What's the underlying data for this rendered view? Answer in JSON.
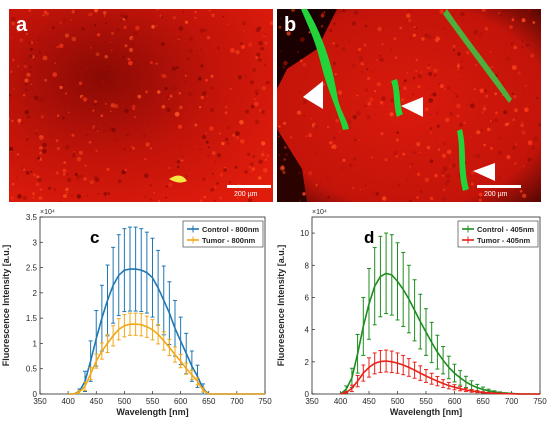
{
  "figure": {
    "panels": {
      "a": {
        "letter": "a",
        "scale_text": "200 µm",
        "stain_colors": [
          "#e41a0a",
          "#f5e642"
        ]
      },
      "b": {
        "letter": "b",
        "scale_text": "200 µm",
        "stain_colors": [
          "#e41a0a",
          "#22d43a"
        ],
        "markers": [
          "arrowhead-icon",
          "arrowhead-icon",
          "arrowhead-icon"
        ]
      },
      "c": {
        "letter": "c"
      },
      "d": {
        "letter": "d"
      }
    }
  },
  "chart_data": [
    {
      "type": "line",
      "panel": "c",
      "xlabel": "Wavelength [nm]",
      "ylabel": "Fluorescence Intensity [a.u.]",
      "exponent_label": "×10⁴",
      "xlim": [
        350,
        750
      ],
      "ylim": [
        0,
        3.5
      ],
      "xticks": [
        350,
        400,
        450,
        500,
        550,
        600,
        650,
        700,
        750
      ],
      "yticks": [
        0,
        0.5,
        1,
        1.5,
        2,
        2.5,
        3,
        3.5
      ],
      "ytick_labels": [
        "0",
        "0.5",
        "1",
        "1.5",
        "2",
        "2.5",
        "3",
        "3.5"
      ],
      "legend_position": "top-right",
      "series": [
        {
          "name": "Control - 800nm",
          "color": "#1f77b4",
          "x": [
            400,
            410,
            420,
            430,
            440,
            450,
            460,
            470,
            480,
            490,
            500,
            510,
            520,
            530,
            540,
            550,
            560,
            570,
            580,
            590,
            600,
            610,
            620,
            630,
            640,
            650,
            660,
            670,
            680,
            690,
            700,
            710,
            720,
            730,
            740,
            750
          ],
          "y": [
            0,
            0,
            0.05,
            0.25,
            0.65,
            1.1,
            1.5,
            1.85,
            2.15,
            2.35,
            2.45,
            2.47,
            2.47,
            2.45,
            2.4,
            2.3,
            2.1,
            1.85,
            1.6,
            1.3,
            1.05,
            0.8,
            0.55,
            0.35,
            0.1,
            0,
            0,
            0,
            0,
            0,
            0,
            0,
            0,
            0,
            0,
            0
          ],
          "err": [
            0,
            0,
            0.05,
            0.2,
            0.4,
            0.55,
            0.65,
            0.7,
            0.75,
            0.8,
            0.82,
            0.83,
            0.83,
            0.82,
            0.8,
            0.78,
            0.74,
            0.68,
            0.62,
            0.55,
            0.47,
            0.4,
            0.3,
            0.22,
            0.1,
            0,
            0,
            0,
            0,
            0,
            0,
            0,
            0,
            0,
            0,
            0
          ]
        },
        {
          "name": "Tumor - 800nm",
          "color": "#f0a818",
          "x": [
            400,
            410,
            420,
            430,
            440,
            450,
            460,
            470,
            480,
            490,
            500,
            510,
            520,
            530,
            540,
            550,
            560,
            570,
            580,
            590,
            600,
            610,
            620,
            630,
            640,
            650,
            660,
            670,
            680,
            690,
            700,
            710,
            720,
            730,
            740,
            750
          ],
          "y": [
            0,
            0,
            0.04,
            0.15,
            0.4,
            0.65,
            0.85,
            1.0,
            1.15,
            1.28,
            1.35,
            1.38,
            1.38,
            1.37,
            1.33,
            1.27,
            1.18,
            1.05,
            0.92,
            0.78,
            0.65,
            0.5,
            0.38,
            0.25,
            0.08,
            0,
            0,
            0,
            0,
            0,
            0,
            0,
            0,
            0,
            0,
            0
          ],
          "err": [
            0,
            0,
            0.03,
            0.08,
            0.12,
            0.14,
            0.16,
            0.18,
            0.2,
            0.21,
            0.22,
            0.22,
            0.22,
            0.22,
            0.21,
            0.2,
            0.19,
            0.18,
            0.16,
            0.15,
            0.13,
            0.11,
            0.09,
            0.07,
            0.04,
            0,
            0,
            0,
            0,
            0,
            0,
            0,
            0,
            0,
            0,
            0
          ]
        }
      ]
    },
    {
      "type": "line",
      "panel": "d",
      "xlabel": "Wavelength [nm]",
      "ylabel": "Fluorescence Intensity [a.u.]",
      "exponent_label": "×10⁴",
      "xlim": [
        350,
        750
      ],
      "ylim": [
        0,
        11
      ],
      "xticks": [
        350,
        400,
        450,
        500,
        550,
        600,
        650,
        700,
        750
      ],
      "yticks": [
        0,
        2,
        4,
        6,
        8,
        10
      ],
      "ytick_labels": [
        "0",
        "2",
        "4",
        "6",
        "8",
        "10"
      ],
      "legend_position": "top-left",
      "series": [
        {
          "name": "Control - 405nm",
          "color": "#1e8c1e",
          "x": [
            400,
            410,
            420,
            430,
            440,
            450,
            460,
            470,
            480,
            490,
            500,
            510,
            520,
            530,
            540,
            550,
            560,
            570,
            580,
            590,
            600,
            610,
            620,
            630,
            640,
            650,
            660,
            670,
            680,
            690,
            700,
            710,
            720,
            730,
            740,
            750
          ],
          "y": [
            0,
            0.3,
            1.0,
            2.5,
            4.2,
            5.6,
            6.7,
            7.3,
            7.5,
            7.4,
            7.0,
            6.5,
            5.9,
            5.2,
            4.5,
            3.85,
            3.2,
            2.6,
            2.1,
            1.65,
            1.3,
            1.0,
            0.75,
            0.55,
            0.4,
            0.28,
            0.2,
            0.13,
            0.08,
            0.05,
            0.03,
            0.01,
            0,
            0,
            0,
            0
          ],
          "err": [
            0,
            0.2,
            0.6,
            1.2,
            1.8,
            2.2,
            2.4,
            2.5,
            2.5,
            2.5,
            2.4,
            2.3,
            2.1,
            1.9,
            1.7,
            1.45,
            1.25,
            1.05,
            0.85,
            0.7,
            0.55,
            0.45,
            0.35,
            0.27,
            0.2,
            0.15,
            0.1,
            0.07,
            0.05,
            0.03,
            0.02,
            0.01,
            0,
            0,
            0,
            0
          ]
        },
        {
          "name": "Tumor - 405nm",
          "color": "#e8201a",
          "x": [
            400,
            410,
            420,
            430,
            440,
            450,
            460,
            470,
            480,
            490,
            500,
            510,
            520,
            530,
            540,
            550,
            560,
            570,
            580,
            590,
            600,
            610,
            620,
            630,
            640,
            650,
            660,
            670,
            680,
            690,
            700,
            710,
            720,
            730,
            740,
            750
          ],
          "y": [
            0,
            0.1,
            0.35,
            0.8,
            1.3,
            1.65,
            1.9,
            2.02,
            2.05,
            2.0,
            1.92,
            1.8,
            1.65,
            1.48,
            1.3,
            1.12,
            0.95,
            0.8,
            0.65,
            0.52,
            0.42,
            0.33,
            0.25,
            0.19,
            0.14,
            0.1,
            0.07,
            0.05,
            0.03,
            0.02,
            0.01,
            0,
            0,
            0,
            0,
            0
          ],
          "err": [
            0,
            0.05,
            0.2,
            0.35,
            0.5,
            0.6,
            0.65,
            0.68,
            0.68,
            0.67,
            0.63,
            0.6,
            0.55,
            0.5,
            0.45,
            0.4,
            0.34,
            0.29,
            0.24,
            0.2,
            0.16,
            0.13,
            0.1,
            0.08,
            0.06,
            0.04,
            0.03,
            0.02,
            0.01,
            0.01,
            0,
            0,
            0,
            0,
            0,
            0
          ]
        }
      ]
    }
  ]
}
